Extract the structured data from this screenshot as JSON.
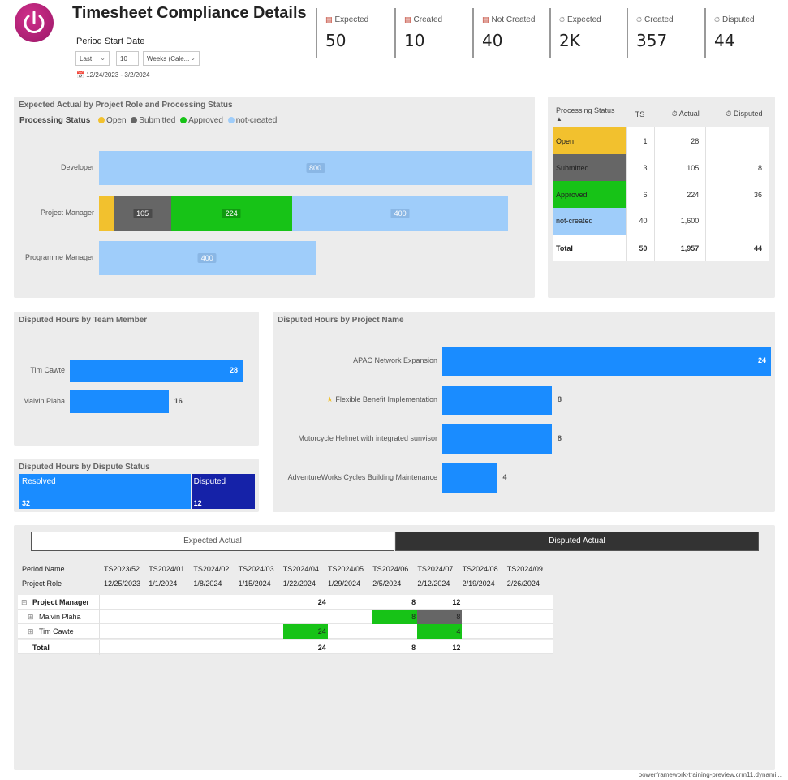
{
  "header": {
    "title": "Timesheet Compliance Details",
    "slicer_label": "Period Start Date",
    "relative_mode": "Last",
    "relative_count": "10",
    "relative_unit": "Weeks (Cale...",
    "date_range": "12/24/2023 - 3/2/2024"
  },
  "kpis": [
    {
      "label": "Expected",
      "value": "50",
      "icon": "document-icon"
    },
    {
      "label": "Created",
      "value": "10",
      "icon": "document-icon"
    },
    {
      "label": "Not Created",
      "value": "40",
      "icon": "document-icon"
    },
    {
      "label": "Expected",
      "value": "2K",
      "icon": "stopwatch-icon"
    },
    {
      "label": "Created",
      "value": "357",
      "icon": "stopwatch-icon"
    },
    {
      "label": "Disputed",
      "value": "44",
      "icon": "stopwatch-icon"
    }
  ],
  "colors": {
    "open": "#f2c12e",
    "submitted": "#666666",
    "approved": "#17c317",
    "not_created": "#9fcdfa",
    "blue": "#1a8cff",
    "navy": "#1522a8"
  },
  "role_chart": {
    "title": "Expected Actual by Project Role and Processing Status",
    "legend_title": "Processing Status",
    "legend": [
      "Open",
      "Submitted",
      "Approved",
      "not-created"
    ]
  },
  "status_table": {
    "headers": [
      "Processing Status",
      "TS",
      "Actual",
      "Disputed"
    ],
    "rows": [
      {
        "status": "Open",
        "ts": "1",
        "actual": "28",
        "disputed": ""
      },
      {
        "status": "Submitted",
        "ts": "3",
        "actual": "105",
        "disputed": "8"
      },
      {
        "status": "Approved",
        "ts": "6",
        "actual": "224",
        "disputed": "36"
      },
      {
        "status": "not-created",
        "ts": "40",
        "actual": "1,600",
        "disputed": ""
      }
    ],
    "total": {
      "status": "Total",
      "ts": "50",
      "actual": "1,957",
      "disputed": "44"
    }
  },
  "team_chart": {
    "title": "Disputed Hours by Team Member"
  },
  "dispute_status": {
    "title": "Disputed Hours by Dispute Status",
    "items": [
      {
        "label": "Resolved",
        "value": "32"
      },
      {
        "label": "Disputed",
        "value": "12"
      }
    ]
  },
  "project_chart": {
    "title": "Disputed Hours by Project Name"
  },
  "tabs": {
    "expected": "Expected Actual",
    "disputed": "Disputed Actual"
  },
  "matrix": {
    "row_header_1": "Period Name",
    "row_header_2": "Project Role",
    "periods": [
      "TS2023/52",
      "TS2024/01",
      "TS2024/02",
      "TS2024/03",
      "TS2024/04",
      "TS2024/05",
      "TS2024/06",
      "TS2024/07",
      "TS2024/08",
      "TS2024/09"
    ],
    "dates": [
      "12/25/2023",
      "1/1/2024",
      "1/8/2024",
      "1/15/2024",
      "1/22/2024",
      "1/29/2024",
      "2/5/2024",
      "2/12/2024",
      "2/19/2024",
      "2/26/2024"
    ],
    "rows": [
      {
        "name": "Project Manager",
        "expand": "⊟",
        "bold": true,
        "cells": [
          "",
          "",
          "",
          "",
          "24",
          "",
          "8",
          "12",
          "",
          ""
        ]
      },
      {
        "name": "Malvin Plaha",
        "expand": "⊞",
        "bold": false,
        "cells": [
          "",
          "",
          "",
          "",
          "",
          "",
          "8",
          "8",
          "",
          ""
        ]
      },
      {
        "name": "Tim Cawte",
        "expand": "⊞",
        "bold": false,
        "cells": [
          "",
          "",
          "",
          "",
          "24",
          "",
          "",
          "4",
          "",
          ""
        ]
      },
      {
        "name": "Total",
        "expand": "",
        "bold": true,
        "cells": [
          "",
          "",
          "",
          "",
          "24",
          "",
          "8",
          "12",
          "",
          ""
        ]
      }
    ]
  },
  "footer": "powerframework-training-preview.crm11.dynami...",
  "chart_data": [
    {
      "type": "bar",
      "orientation": "horizontal",
      "stacked": true,
      "title": "Expected Actual by Project Role and Processing Status",
      "categories": [
        "Developer",
        "Project Manager",
        "Programme Manager"
      ],
      "series": [
        {
          "name": "Open",
          "values": [
            0,
            28,
            0
          ]
        },
        {
          "name": "Submitted",
          "values": [
            0,
            105,
            0
          ]
        },
        {
          "name": "Approved",
          "values": [
            0,
            224,
            0
          ]
        },
        {
          "name": "not-created",
          "values": [
            800,
            400,
            400
          ]
        }
      ],
      "xlim": [
        0,
        800
      ]
    },
    {
      "type": "bar",
      "orientation": "horizontal",
      "title": "Disputed Hours by Team Member",
      "categories": [
        "Tim Cawte",
        "Malvin Plaha"
      ],
      "values": [
        28,
        16
      ],
      "xlim": [
        0,
        28
      ]
    },
    {
      "type": "bar",
      "orientation": "horizontal",
      "title": "Disputed Hours by Project Name",
      "categories": [
        "APAC Network Expansion",
        "Flexible Benefit Implementation",
        "Motorcycle Helmet with integrated sunvisor",
        "AdventureWorks Cycles Building Maintenance"
      ],
      "values": [
        24,
        8,
        8,
        4
      ],
      "xlim": [
        0,
        24
      ]
    },
    {
      "type": "bar",
      "orientation": "horizontal",
      "stacked": true,
      "title": "Disputed Hours by Dispute Status",
      "categories": [
        "Resolved",
        "Disputed"
      ],
      "values": [
        32,
        12
      ]
    }
  ]
}
